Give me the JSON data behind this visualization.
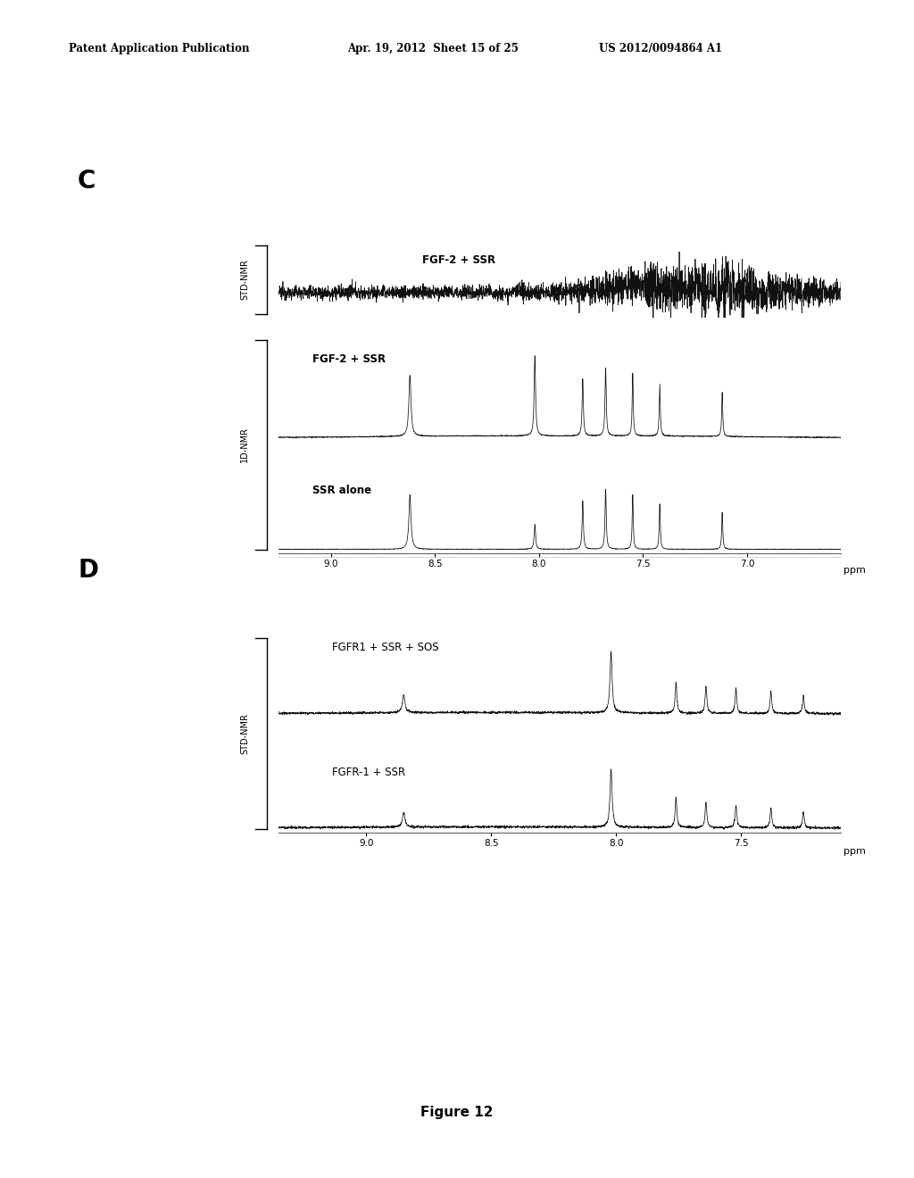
{
  "header_left": "Patent Application Publication",
  "header_mid": "Apr. 19, 2012  Sheet 15 of 25",
  "header_right": "US 2012/0094864 A1",
  "panel_C_label": "C",
  "panel_D_label": "D",
  "figure_caption": "Figure 12",
  "panel_C": {
    "ylabel_std": "STD-NMR",
    "ylabel_1d": "1D-NMR",
    "label_std": "FGF-2 + SSR",
    "label_1d1": "FGF-2 + SSR",
    "label_1d2": "SSR alone",
    "xticks": [
      9.0,
      8.5,
      8.0,
      7.5,
      7.0
    ],
    "xtick_labels": [
      "9.0",
      "8.5",
      "8.0",
      "7.5",
      "7.0"
    ],
    "xlabel": "ppm",
    "xmin": 6.55,
    "xmax": 9.25
  },
  "panel_D": {
    "ylabel_std": "STD-NMR",
    "label_d1": "FGFR1 + SSR + SOS",
    "label_d2": "FGFR-1 + SSR",
    "xticks": [
      9.0,
      8.5,
      8.0,
      7.5
    ],
    "xtick_labels": [
      "9.0",
      "8.5",
      "8.0",
      "7.5"
    ],
    "xlabel": "ppm",
    "xmin": 7.1,
    "xmax": 9.35
  },
  "bg": "#ffffff",
  "fg": "#000000",
  "trace_color": "#111111"
}
